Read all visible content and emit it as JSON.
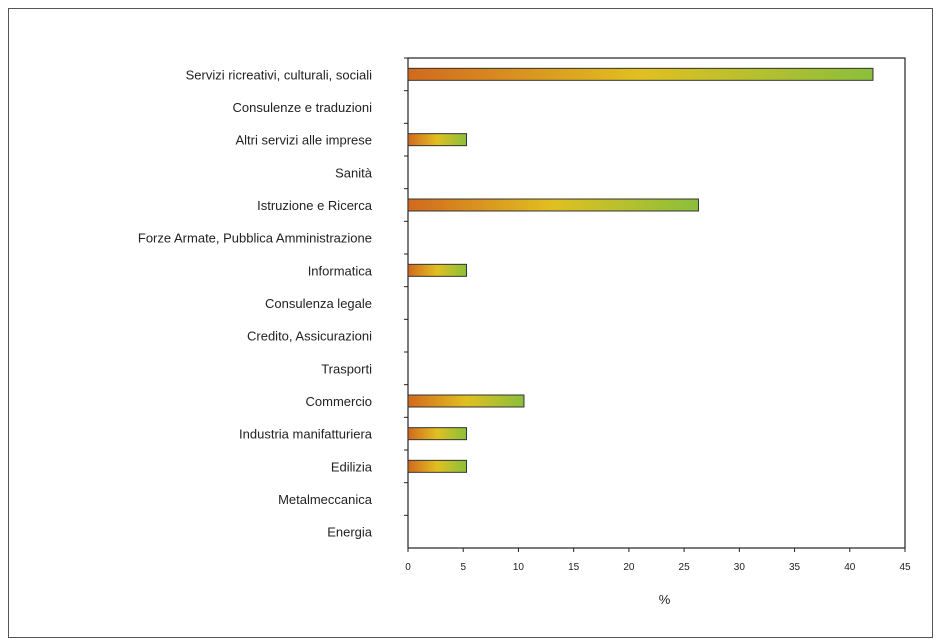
{
  "chart_data": {
    "type": "bar",
    "orientation": "horizontal",
    "title": "",
    "xlabel": "%",
    "ylabel": "",
    "xlim": [
      0,
      45
    ],
    "xticks": [
      0,
      5,
      10,
      15,
      20,
      25,
      30,
      35,
      40,
      45
    ],
    "grid": false,
    "legend": "none",
    "bar_gradient": [
      "#d2691e",
      "#e0c020",
      "#8bbf3c"
    ],
    "categories": [
      "Servizi ricreativi, culturali, sociali",
      "Consulenze e traduzioni",
      "Altri servizi alle imprese",
      "Sanità",
      "Istruzione e Ricerca",
      "Forze Armate, Pubblica Amministrazione",
      "Informatica",
      "Consulenza legale",
      "Credito, Assicurazioni",
      "Trasporti",
      "Commercio",
      "Industria manifatturiera",
      "Edilizia",
      "Metalmeccanica",
      "Energia"
    ],
    "values": [
      42.1,
      0,
      5.3,
      0,
      26.3,
      0,
      5.3,
      0,
      0,
      0,
      10.5,
      5.3,
      5.3,
      0,
      0
    ]
  }
}
